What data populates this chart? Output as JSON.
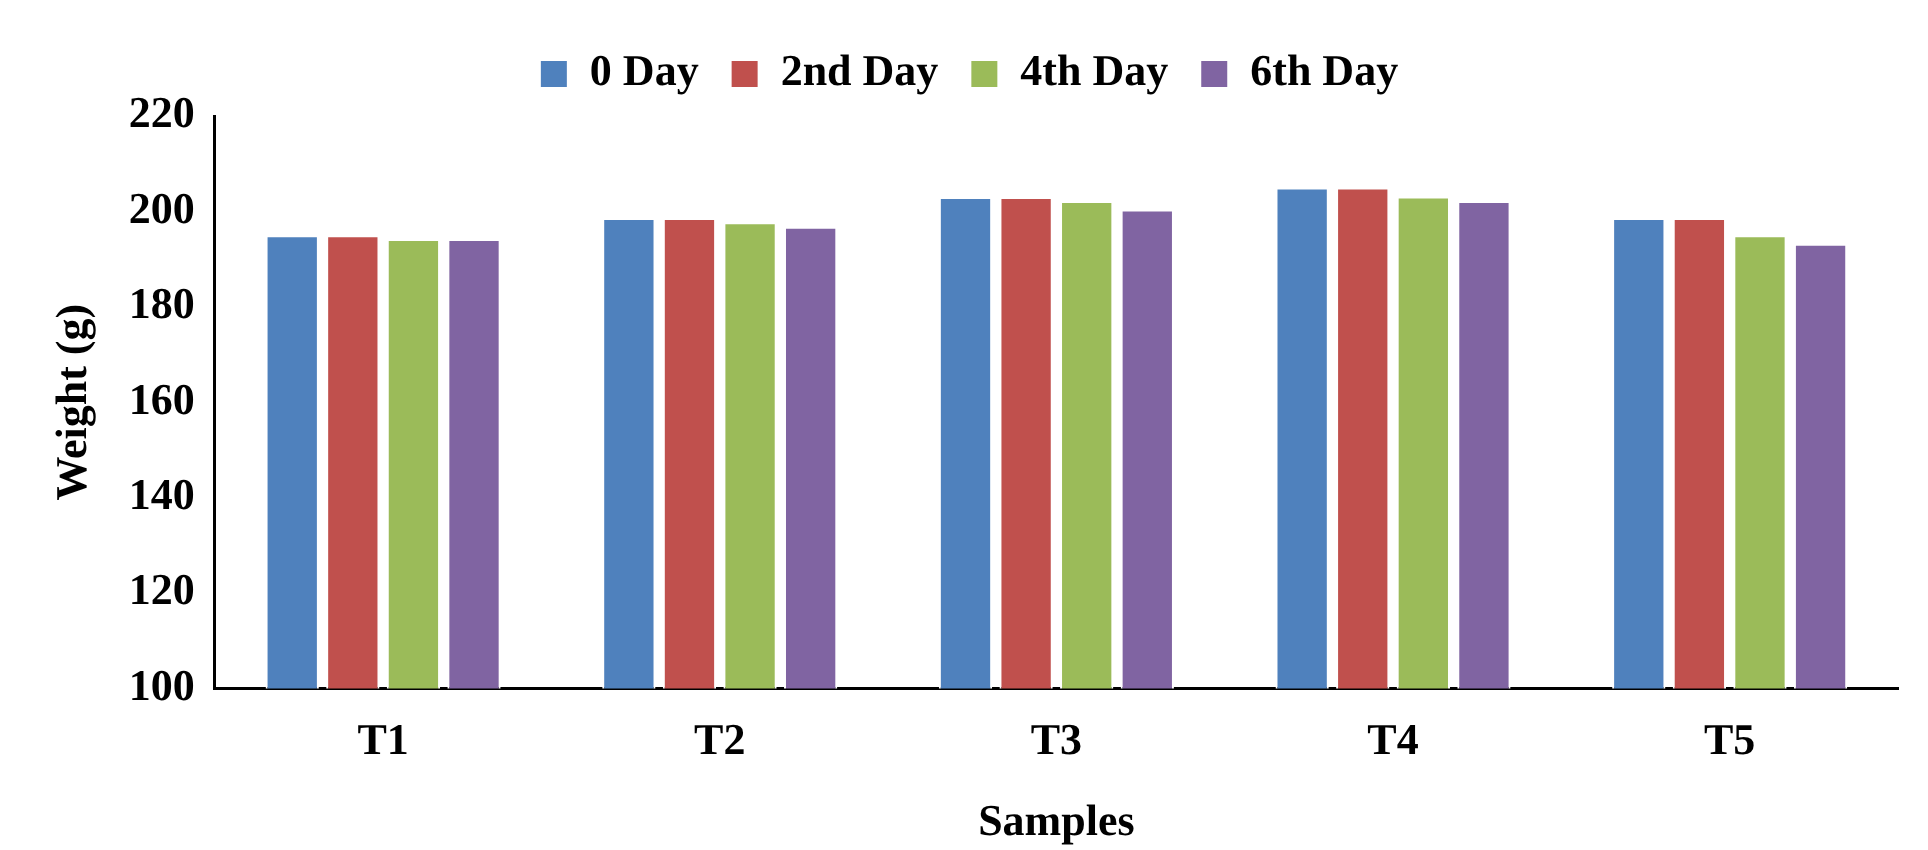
{
  "chart_data": {
    "type": "bar",
    "xlabel": "Samples",
    "ylabel": "Weight (g)",
    "categories": [
      "T1",
      "T2",
      "T3",
      "T4",
      "T5"
    ],
    "series": [
      {
        "name": "0 Day",
        "color": "#4f81bd",
        "values": [
          195,
          198.6,
          203,
          205,
          198.6
        ]
      },
      {
        "name": "2nd Day",
        "color": "#c0504d",
        "values": [
          195,
          198.6,
          203,
          205,
          198.6
        ]
      },
      {
        "name": "4th Day",
        "color": "#9bbb59",
        "values": [
          194.2,
          197.7,
          202.2,
          203.1,
          195
        ]
      },
      {
        "name": "6th Day",
        "color": "#8064a2",
        "values": [
          194.2,
          196.8,
          200.4,
          202.2,
          193.2
        ]
      }
    ],
    "ylim": [
      100,
      220
    ],
    "yticks": [
      100,
      120,
      140,
      160,
      180,
      200,
      220
    ],
    "grid": false,
    "legend": "top"
  }
}
